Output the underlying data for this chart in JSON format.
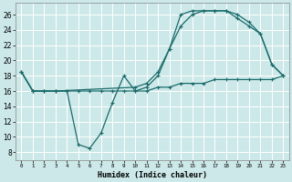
{
  "xlabel": "Humidex (Indice chaleur)",
  "background_color": "#cde8e8",
  "grid_color": "#ffffff",
  "line_color": "#1a6b6b",
  "xlim": [
    -0.5,
    23.5
  ],
  "ylim": [
    7,
    27.5
  ],
  "xticks": [
    0,
    1,
    2,
    3,
    4,
    5,
    6,
    7,
    8,
    9,
    10,
    11,
    12,
    13,
    14,
    15,
    16,
    17,
    18,
    19,
    20,
    21,
    22,
    23
  ],
  "yticks": [
    8,
    10,
    12,
    14,
    16,
    18,
    20,
    22,
    24,
    26
  ],
  "series1_x": [
    0,
    1,
    2,
    3,
    4,
    5,
    6,
    7,
    8,
    9,
    10,
    11,
    12,
    13,
    14,
    15,
    16,
    17,
    18,
    19,
    20,
    21,
    22,
    23
  ],
  "series1_y": [
    18.5,
    16.0,
    16.0,
    16.0,
    16.0,
    16.0,
    16.0,
    16.0,
    16.0,
    16.0,
    16.0,
    16.0,
    16.5,
    16.5,
    17.0,
    17.0,
    17.0,
    17.5,
    17.5,
    17.5,
    17.5,
    17.5,
    17.5,
    18.0
  ],
  "series2_x": [
    0,
    1,
    2,
    3,
    4,
    5,
    6,
    7,
    8,
    9,
    10,
    11,
    12,
    13,
    14,
    15,
    16,
    17,
    18,
    19,
    20,
    21,
    22,
    23
  ],
  "series2_y": [
    18.5,
    16.0,
    16.0,
    16.0,
    16.0,
    9.0,
    8.5,
    10.5,
    14.5,
    18.0,
    16.0,
    16.5,
    18.0,
    21.5,
    24.5,
    26.0,
    26.5,
    26.5,
    26.5,
    25.5,
    24.5,
    23.5,
    19.5,
    18.0
  ],
  "series3_x": [
    0,
    1,
    2,
    3,
    10,
    11,
    12,
    13,
    14,
    15,
    16,
    17,
    18,
    19,
    20,
    21,
    22,
    23
  ],
  "series3_y": [
    18.5,
    16.0,
    16.0,
    16.0,
    16.5,
    17.0,
    18.5,
    21.5,
    26.0,
    26.5,
    26.5,
    26.5,
    26.5,
    26.0,
    25.0,
    23.5,
    19.5,
    18.0
  ]
}
